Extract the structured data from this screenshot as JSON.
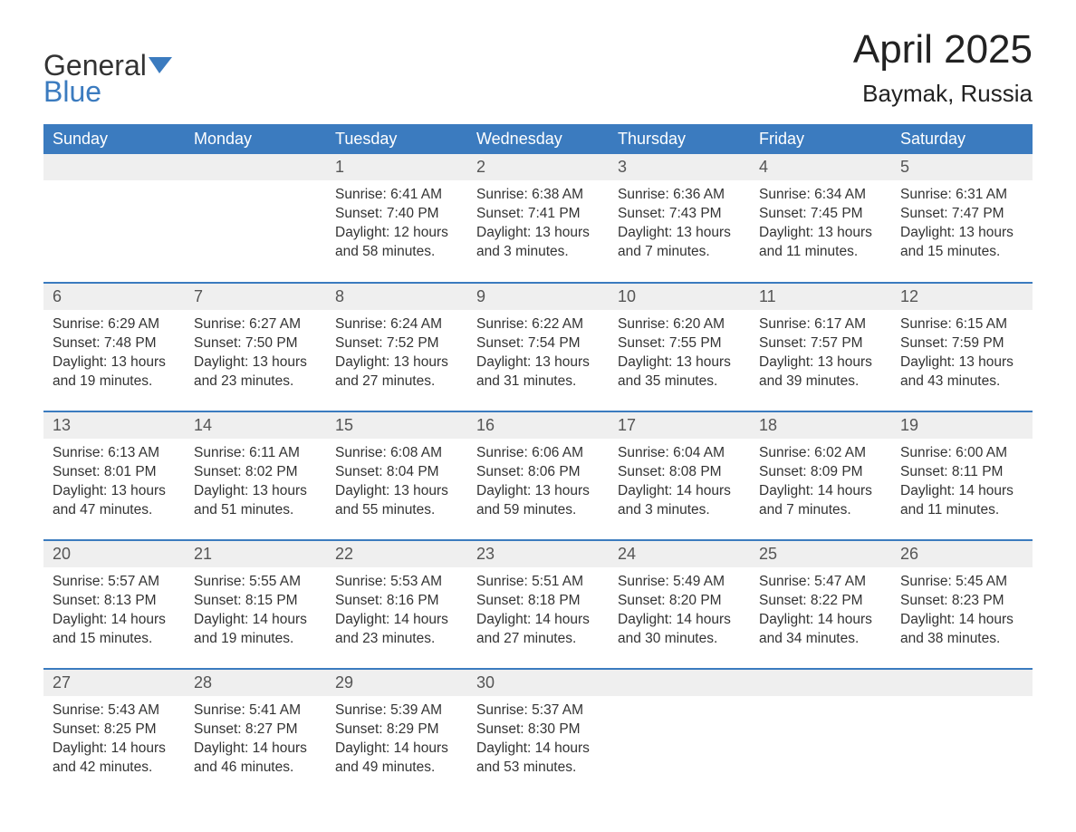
{
  "brand": {
    "name_part1": "General",
    "name_part2": "Blue",
    "text_color": "#333333",
    "accent_color": "#3b7bbf"
  },
  "title": {
    "month": "April 2025",
    "location": "Baymak, Russia",
    "month_fontsize": 44,
    "location_fontsize": 26
  },
  "colors": {
    "header_bg": "#3b7bbf",
    "header_text": "#ffffff",
    "daynum_bg": "#efefef",
    "row_divider": "#3b7bbf",
    "body_text": "#333333",
    "page_bg": "#ffffff"
  },
  "typography": {
    "body_font": "Arial",
    "cell_fontsize": 15.5,
    "header_fontsize": 18,
    "daynum_fontsize": 18
  },
  "calendar": {
    "type": "table",
    "days_of_week": [
      "Sunday",
      "Monday",
      "Tuesday",
      "Wednesday",
      "Thursday",
      "Friday",
      "Saturday"
    ],
    "labels": {
      "sunrise": "Sunrise:",
      "sunset": "Sunset:",
      "daylight": "Daylight:"
    },
    "weeks": [
      [
        null,
        null,
        {
          "n": "1",
          "sunrise": "6:41 AM",
          "sunset": "7:40 PM",
          "daylight": "12 hours and 58 minutes."
        },
        {
          "n": "2",
          "sunrise": "6:38 AM",
          "sunset": "7:41 PM",
          "daylight": "13 hours and 3 minutes."
        },
        {
          "n": "3",
          "sunrise": "6:36 AM",
          "sunset": "7:43 PM",
          "daylight": "13 hours and 7 minutes."
        },
        {
          "n": "4",
          "sunrise": "6:34 AM",
          "sunset": "7:45 PM",
          "daylight": "13 hours and 11 minutes."
        },
        {
          "n": "5",
          "sunrise": "6:31 AM",
          "sunset": "7:47 PM",
          "daylight": "13 hours and 15 minutes."
        }
      ],
      [
        {
          "n": "6",
          "sunrise": "6:29 AM",
          "sunset": "7:48 PM",
          "daylight": "13 hours and 19 minutes."
        },
        {
          "n": "7",
          "sunrise": "6:27 AM",
          "sunset": "7:50 PM",
          "daylight": "13 hours and 23 minutes."
        },
        {
          "n": "8",
          "sunrise": "6:24 AM",
          "sunset": "7:52 PM",
          "daylight": "13 hours and 27 minutes."
        },
        {
          "n": "9",
          "sunrise": "6:22 AM",
          "sunset": "7:54 PM",
          "daylight": "13 hours and 31 minutes."
        },
        {
          "n": "10",
          "sunrise": "6:20 AM",
          "sunset": "7:55 PM",
          "daylight": "13 hours and 35 minutes."
        },
        {
          "n": "11",
          "sunrise": "6:17 AM",
          "sunset": "7:57 PM",
          "daylight": "13 hours and 39 minutes."
        },
        {
          "n": "12",
          "sunrise": "6:15 AM",
          "sunset": "7:59 PM",
          "daylight": "13 hours and 43 minutes."
        }
      ],
      [
        {
          "n": "13",
          "sunrise": "6:13 AM",
          "sunset": "8:01 PM",
          "daylight": "13 hours and 47 minutes."
        },
        {
          "n": "14",
          "sunrise": "6:11 AM",
          "sunset": "8:02 PM",
          "daylight": "13 hours and 51 minutes."
        },
        {
          "n": "15",
          "sunrise": "6:08 AM",
          "sunset": "8:04 PM",
          "daylight": "13 hours and 55 minutes."
        },
        {
          "n": "16",
          "sunrise": "6:06 AM",
          "sunset": "8:06 PM",
          "daylight": "13 hours and 59 minutes."
        },
        {
          "n": "17",
          "sunrise": "6:04 AM",
          "sunset": "8:08 PM",
          "daylight": "14 hours and 3 minutes."
        },
        {
          "n": "18",
          "sunrise": "6:02 AM",
          "sunset": "8:09 PM",
          "daylight": "14 hours and 7 minutes."
        },
        {
          "n": "19",
          "sunrise": "6:00 AM",
          "sunset": "8:11 PM",
          "daylight": "14 hours and 11 minutes."
        }
      ],
      [
        {
          "n": "20",
          "sunrise": "5:57 AM",
          "sunset": "8:13 PM",
          "daylight": "14 hours and 15 minutes."
        },
        {
          "n": "21",
          "sunrise": "5:55 AM",
          "sunset": "8:15 PM",
          "daylight": "14 hours and 19 minutes."
        },
        {
          "n": "22",
          "sunrise": "5:53 AM",
          "sunset": "8:16 PM",
          "daylight": "14 hours and 23 minutes."
        },
        {
          "n": "23",
          "sunrise": "5:51 AM",
          "sunset": "8:18 PM",
          "daylight": "14 hours and 27 minutes."
        },
        {
          "n": "24",
          "sunrise": "5:49 AM",
          "sunset": "8:20 PM",
          "daylight": "14 hours and 30 minutes."
        },
        {
          "n": "25",
          "sunrise": "5:47 AM",
          "sunset": "8:22 PM",
          "daylight": "14 hours and 34 minutes."
        },
        {
          "n": "26",
          "sunrise": "5:45 AM",
          "sunset": "8:23 PM",
          "daylight": "14 hours and 38 minutes."
        }
      ],
      [
        {
          "n": "27",
          "sunrise": "5:43 AM",
          "sunset": "8:25 PM",
          "daylight": "14 hours and 42 minutes."
        },
        {
          "n": "28",
          "sunrise": "5:41 AM",
          "sunset": "8:27 PM",
          "daylight": "14 hours and 46 minutes."
        },
        {
          "n": "29",
          "sunrise": "5:39 AM",
          "sunset": "8:29 PM",
          "daylight": "14 hours and 49 minutes."
        },
        {
          "n": "30",
          "sunrise": "5:37 AM",
          "sunset": "8:30 PM",
          "daylight": "14 hours and 53 minutes."
        },
        null,
        null,
        null
      ]
    ]
  }
}
